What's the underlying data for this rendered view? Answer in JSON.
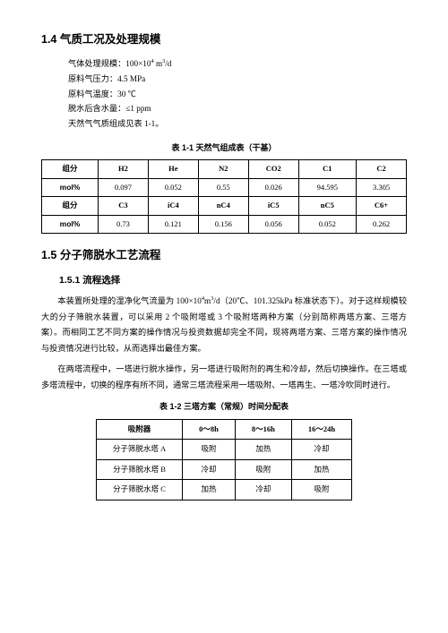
{
  "section_1_4": {
    "heading": "1.4  气质工况及处理规模",
    "specs": {
      "line1_pre": "气体处理规模：100×10",
      "line1_exp": "4",
      "line1_unit_pre": " m",
      "line1_unit_exp": "3",
      "line1_post": "/d",
      "line2": "原料气压力：4.5 MPa",
      "line3": "原料气温度：30 ℃",
      "line4": "脱水后含水量：≤1 ppm",
      "line5": "天然气气质组成见表 1-1。"
    },
    "table_caption": "表 1-1  天然气组成表（干基）",
    "row_labels": {
      "comp": "组分",
      "mol": "mol%"
    },
    "row1": {
      "h1": "H2",
      "h2": "He",
      "h3": "N2",
      "h4": "CO2",
      "h5": "C1",
      "h6": "C2"
    },
    "row1v": {
      "v1": "0.097",
      "v2": "0.052",
      "v3": "0.55",
      "v4": "0.026",
      "v5": "94.595",
      "v6": "3.305"
    },
    "row2": {
      "h1": "C3",
      "h2": "iC4",
      "h3": "nC4",
      "h4": "iC5",
      "h5": "nC5",
      "h6": "C6+"
    },
    "row2v": {
      "v1": "0.73",
      "v2": "0.121",
      "v3": "0.156",
      "v4": "0.056",
      "v5": "0.052",
      "v6": "0.262"
    }
  },
  "section_1_5": {
    "heading": "1.5  分子筛脱水工艺流程",
    "sub_1_5_1": "1.5.1 流程选择",
    "para1_a": "本装置所处理的湿净化气流量为 100×10",
    "para1_exp": "4",
    "para1_unit_pre": "m",
    "para1_unit_exp": "3",
    "para1_b": "/d（20℃、101.325kPa 标准状态下）。对于这样规模较大的分子筛脱水装置，可以采用 2 个吸附塔或 3 个吸附塔两种方案（分别简称两塔方案、三塔方案）。而相同工艺不同方案的操作情况与投资数据却完全不同，现将两塔方案、三塔方案的操作情况与投资情况进行比较，从而选择出最佳方案。",
    "para2": "在两塔流程中，一塔进行脱水操作，另一塔进行吸附剂的再生和冷却，然后切换操作。在三塔或多塔流程中，切换的程序有所不同，通常三塔流程采用一塔吸附、一塔再生、一塔冷吹同时进行。",
    "table2_caption": "表 1-2  三塔方案（常规）时间分配表",
    "table2": {
      "head": {
        "c0": "吸附器",
        "c1": "0～8h",
        "c2": "8～16h",
        "c3": "16～24h"
      },
      "r1": {
        "c0": "分子筛脱水塔 A",
        "c1": "吸附",
        "c2": "加热",
        "c3": "冷却"
      },
      "r2": {
        "c0": "分子筛脱水塔 B",
        "c1": "冷却",
        "c2": "吸附",
        "c3": "加热"
      },
      "r3": {
        "c0": "分子筛脱水塔 C",
        "c1": "加热",
        "c2": "冷却",
        "c3": "吸附"
      }
    }
  }
}
